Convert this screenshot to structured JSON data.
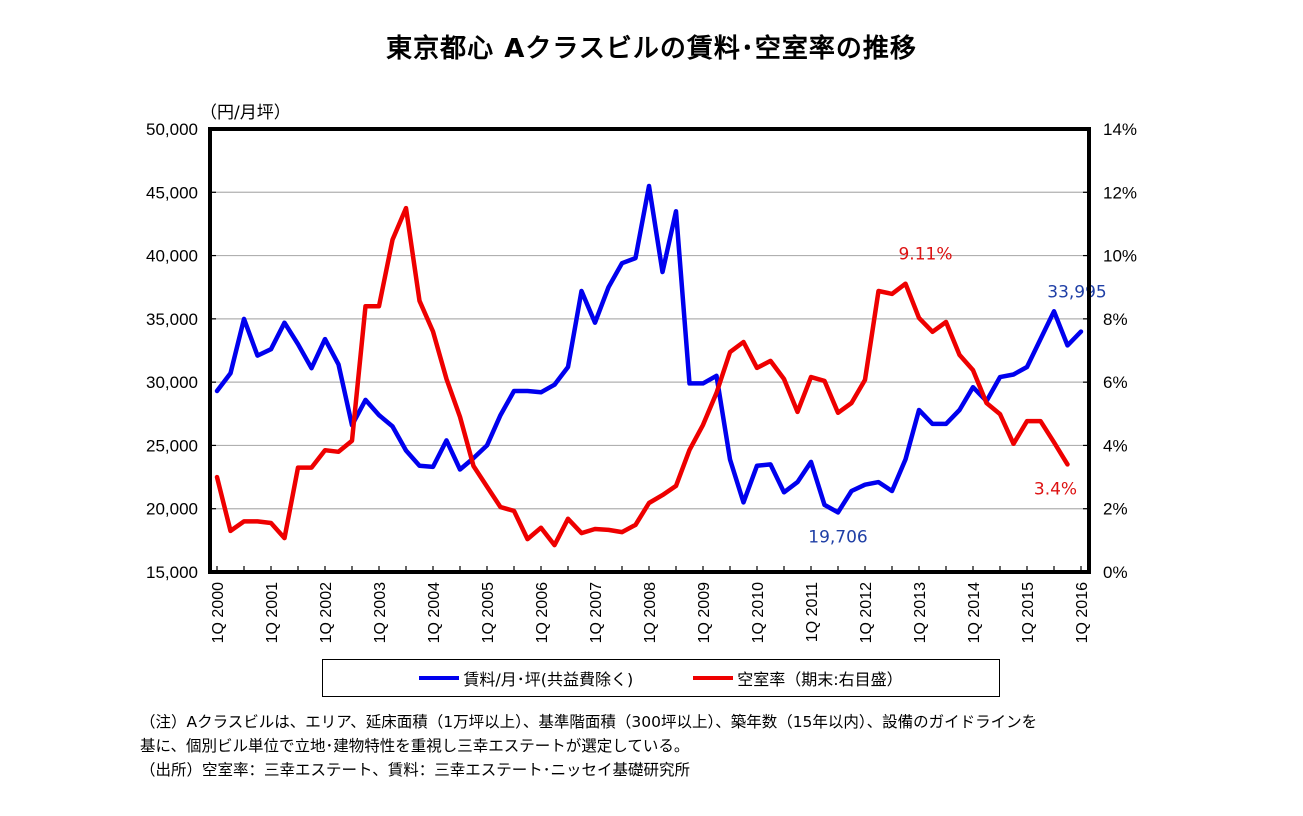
{
  "title": "東京都心 Aクラスビルの賃料･空室率の推移",
  "left_axis_unit": "（円/月坪）",
  "legend": [
    {
      "label": "賃料/月･坪(共益費除く)",
      "color": "#0000ee"
    },
    {
      "label": "空室率（期末:右目盛）",
      "color": "#ee0000"
    }
  ],
  "notes": [
    "（注）Aクラスビルは、エリア、延床面積（1万坪以上）、基準階面積（300坪以上）、築年数（15年以内）、設備のガイドラインを",
    "基に、個別ビル単位で立地･建物特性を重視し三幸エステートが選定している。",
    "（出所）空室率：三幸エステート、賃料：三幸エステート･ニッセイ基礎研究所"
  ],
  "chart_data": {
    "type": "line",
    "title": "東京都心 Aクラスビルの賃料･空室率の推移",
    "xlabel": "",
    "ylabel": "（円/月坪）",
    "y2label": "",
    "x_start": "1Q 2000",
    "x_frequency": "quarterly",
    "xtick_labels": [
      "1Q 2000",
      "1Q 2001",
      "1Q 2002",
      "1Q 2003",
      "1Q 2004",
      "1Q 2005",
      "1Q 2006",
      "1Q 2007",
      "1Q 2008",
      "1Q 2009",
      "1Q 2010",
      "1Q 2011",
      "1Q 2012",
      "1Q 2013",
      "1Q 2014",
      "1Q 2015",
      "1Q 2016"
    ],
    "ylim": [
      15000,
      50000
    ],
    "yticks": [
      15000,
      20000,
      25000,
      30000,
      35000,
      40000,
      45000,
      50000
    ],
    "ytick_labels": [
      "15,000",
      "20,000",
      "25,000",
      "30,000",
      "35,000",
      "40,000",
      "45,000",
      "50,000"
    ],
    "y2lim": [
      0,
      14
    ],
    "y2ticks": [
      0,
      2,
      4,
      6,
      8,
      10,
      12,
      14
    ],
    "y2tick_labels": [
      "0%",
      "2%",
      "4%",
      "6%",
      "8%",
      "10%",
      "12%",
      "14%"
    ],
    "grid": true,
    "legend_position": "bottom",
    "series": [
      {
        "name": "賃料/月･坪(共益費除く)",
        "axis": "left",
        "color": "#0000ee",
        "values": [
          29300,
          30700,
          35000,
          32100,
          32600,
          34700,
          33000,
          31100,
          33400,
          31400,
          26600,
          28600,
          27400,
          26500,
          24600,
          23400,
          23300,
          25400,
          23100,
          24000,
          25000,
          27400,
          29300,
          29300,
          29200,
          29800,
          31200,
          37200,
          34700,
          37500,
          39400,
          39800,
          45500,
          38700,
          43500,
          29900,
          29900,
          30500,
          23900,
          20500,
          23400,
          23500,
          21300,
          22100,
          23700,
          20300,
          19706,
          21400,
          21900,
          22100,
          21400,
          23900,
          27800,
          26700,
          26700,
          27800,
          29600,
          28500,
          30400,
          30600,
          31200,
          33400,
          35600,
          32900,
          33995
        ]
      },
      {
        "name": "空室率（期末:右目盛）",
        "axis": "right",
        "color": "#ee0000",
        "values": [
          3.0,
          1.3,
          1.6,
          1.6,
          1.55,
          1.07,
          3.3,
          3.3,
          3.85,
          3.8,
          4.15,
          8.4,
          8.4,
          10.5,
          11.5,
          8.57,
          7.6,
          6.1,
          4.9,
          3.35,
          2.7,
          2.05,
          1.93,
          1.04,
          1.4,
          0.85,
          1.68,
          1.23,
          1.36,
          1.33,
          1.26,
          1.49,
          2.18,
          2.43,
          2.72,
          3.86,
          4.65,
          5.66,
          6.95,
          7.27,
          6.45,
          6.67,
          6.1,
          5.06,
          6.16,
          6.04,
          5.03,
          5.34,
          6.07,
          8.88,
          8.79,
          9.11,
          8.03,
          7.59,
          7.9,
          6.86,
          6.38,
          5.34,
          4.99,
          4.05,
          4.77,
          4.77,
          4.1,
          3.4
        ]
      }
    ],
    "annotations": [
      {
        "text": "33,995",
        "series": 0,
        "index": 64,
        "color": "#1f3fa6"
      },
      {
        "text": "19,706",
        "series": 0,
        "index": 46,
        "color": "#1f3fa6"
      },
      {
        "text": "9.11%",
        "series": 1,
        "index": 51,
        "color": "#dd1111"
      },
      {
        "text": "3.4%",
        "series": 1,
        "index": 63,
        "color": "#dd1111"
      }
    ]
  }
}
